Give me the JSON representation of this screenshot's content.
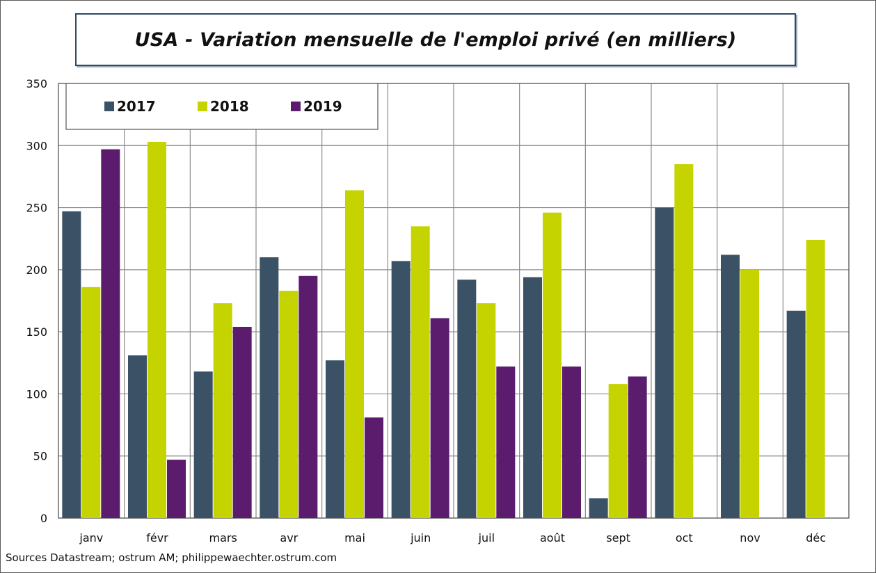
{
  "chart_data": {
    "type": "bar",
    "title": "USA - Variation mensuelle de l'emploi privé  (en milliers)",
    "categories": [
      "janv",
      "févr",
      "mars",
      "avr",
      "mai",
      "juin",
      "juil",
      "août",
      "sept",
      "oct",
      "nov",
      "déc"
    ],
    "series": [
      {
        "name": "2017",
        "color": "#3b5266",
        "values": [
          247,
          131,
          118,
          210,
          127,
          207,
          192,
          194,
          16,
          250,
          212,
          167
        ]
      },
      {
        "name": "2018",
        "color": "#c5d400",
        "values": [
          186,
          303,
          173,
          183,
          264,
          235,
          173,
          246,
          108,
          285,
          200,
          224
        ]
      },
      {
        "name": "2019",
        "color": "#5b1c6e",
        "values": [
          297,
          47,
          154,
          195,
          81,
          161,
          122,
          122,
          114,
          null,
          null,
          null
        ]
      }
    ],
    "ylim": [
      0,
      350
    ],
    "yticks": [
      0,
      50,
      100,
      150,
      200,
      250,
      300,
      350
    ],
    "grid": true,
    "legend_position": "top-left",
    "source": "Sources Datastream; ostrum AM; philippewaechter.ostrum.com"
  }
}
